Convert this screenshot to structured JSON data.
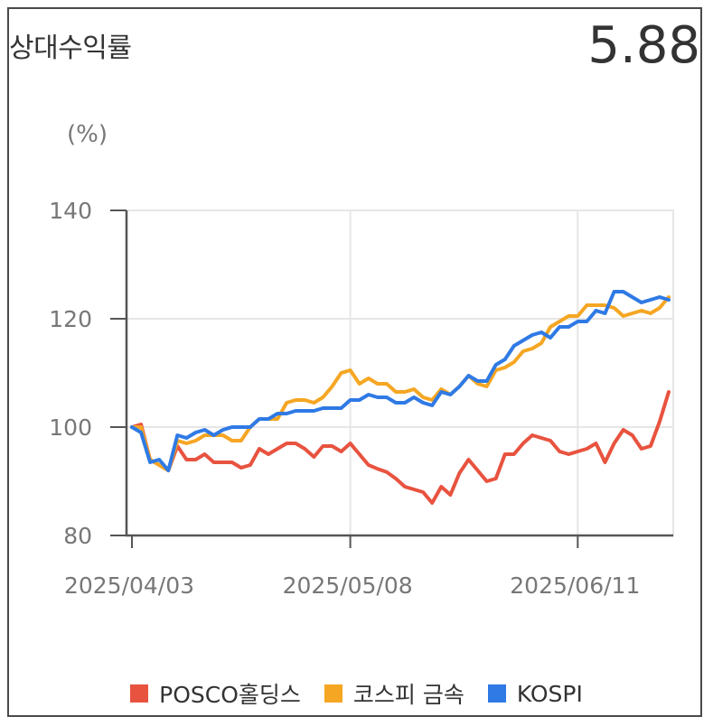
{
  "header": {
    "title": "상대수익률",
    "value": "5.88"
  },
  "chart_data": {
    "type": "line",
    "unit": "(%)",
    "yticks": [
      140,
      120,
      100,
      80
    ],
    "ylim": [
      80,
      140
    ],
    "xticks": [
      "2025/04/03",
      "2025/05/08",
      "2025/06/11"
    ],
    "xtick_index": [
      0,
      24,
      49
    ],
    "grid": true,
    "legend_position": "bottom",
    "series": [
      {
        "name": "POSCO홀딩스",
        "color": "#e8533f",
        "values": [
          100,
          100.5,
          94,
          93,
          92,
          96.5,
          94,
          94,
          95,
          93.5,
          93.5,
          93.5,
          92.5,
          93,
          96,
          95,
          96,
          97,
          97,
          96,
          94.5,
          96.5,
          96.5,
          95.5,
          97,
          95,
          93,
          92.3,
          91.7,
          90.5,
          89,
          88.5,
          88,
          86,
          89,
          87.5,
          91.5,
          94,
          92,
          90,
          90.5,
          95,
          95,
          97,
          98.5,
          98,
          97.5,
          95.5,
          95,
          95.5,
          96,
          97,
          93.5,
          97,
          99.5,
          98.5,
          96,
          96.5,
          101,
          106.5
        ]
      },
      {
        "name": "코스피 금속",
        "color": "#f5a623",
        "values": [
          100,
          100,
          94,
          93,
          92,
          97.5,
          97,
          97.5,
          98.5,
          98.5,
          98.5,
          97.5,
          97.5,
          100,
          101.5,
          101.5,
          101.5,
          104.5,
          105,
          105,
          104.5,
          105.5,
          107.5,
          110,
          110.5,
          108,
          109,
          108,
          108,
          106.5,
          106.5,
          107,
          105.5,
          105,
          107,
          106,
          107.5,
          109.5,
          108,
          107.5,
          110.5,
          111,
          112,
          114,
          114.5,
          115.5,
          118.5,
          119.5,
          120.5,
          120.5,
          122.5,
          122.5,
          122.5,
          122,
          120.5,
          121,
          121.5,
          121,
          122,
          124
        ]
      },
      {
        "name": "KOSPI",
        "color": "#2f7ae5",
        "values": [
          100,
          99,
          93.5,
          94,
          92,
          98.5,
          98,
          99,
          99.5,
          98.5,
          99.5,
          100,
          100,
          100,
          101.5,
          101.5,
          102.5,
          102.5,
          103,
          103,
          103,
          103.5,
          103.5,
          103.5,
          105,
          105,
          106,
          105.5,
          105.5,
          104.5,
          104.5,
          105.5,
          104.5,
          104,
          106.5,
          106,
          107.5,
          109.5,
          108.5,
          108.5,
          111.5,
          112.5,
          115,
          116,
          117,
          117.5,
          116.5,
          118.5,
          118.5,
          119.5,
          119.5,
          121.5,
          121,
          125,
          125,
          124,
          123,
          123.5,
          124,
          123.5
        ]
      }
    ]
  }
}
